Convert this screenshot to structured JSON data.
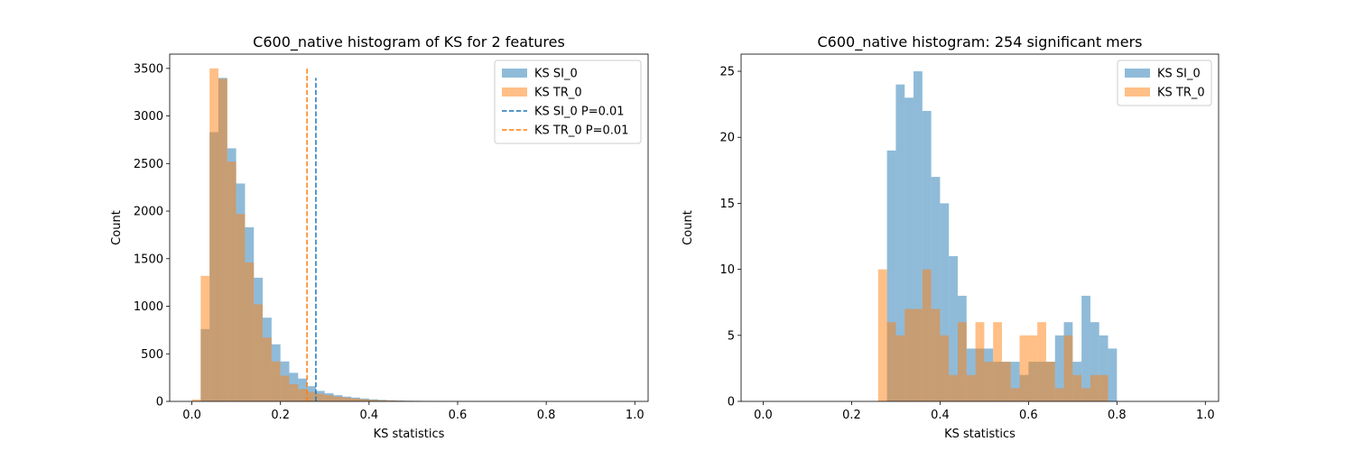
{
  "chart_data": [
    {
      "type": "histogram",
      "title": "C600_native histogram of KS for 2 features",
      "xlabel": "KS statistics",
      "ylabel": "Count",
      "xlim": [
        -0.05,
        1.03
      ],
      "ylim": [
        0,
        3650
      ],
      "xticks": [
        0.0,
        0.2,
        0.4,
        0.6,
        0.8,
        1.0
      ],
      "xtick_labels": [
        "0.0",
        "0.2",
        "0.4",
        "0.6",
        "0.8",
        "1.0"
      ],
      "yticks": [
        0,
        500,
        1000,
        1500,
        2000,
        2500,
        3000,
        3500
      ],
      "ytick_labels": [
        "0",
        "500",
        "1000",
        "1500",
        "2000",
        "2500",
        "3000",
        "3500"
      ],
      "grid": false,
      "legend_position": "top-right",
      "bins": [
        0.0,
        0.02,
        0.04,
        0.06,
        0.08,
        0.1,
        0.12,
        0.14,
        0.16,
        0.18,
        0.2,
        0.22,
        0.24,
        0.26,
        0.28,
        0.3,
        0.32,
        0.34,
        0.36,
        0.38,
        0.4,
        0.42,
        0.44,
        0.46,
        0.48,
        0.5,
        0.52,
        0.54,
        0.56,
        0.58,
        0.6,
        0.62,
        0.64,
        0.66,
        0.68,
        0.7,
        0.72,
        0.74,
        0.76,
        0.78,
        0.8
      ],
      "series": [
        {
          "name": "KS SI_0",
          "color": "#1f77b4",
          "alpha": 0.5,
          "values": [
            0,
            760,
            2830,
            3400,
            2660,
            2290,
            1830,
            1300,
            880,
            600,
            420,
            300,
            240,
            160,
            110,
            85,
            65,
            50,
            40,
            30,
            22,
            16,
            12,
            9,
            7,
            6,
            5,
            4,
            3,
            2,
            2,
            1,
            1,
            1,
            1,
            1,
            1,
            1,
            1,
            0
          ]
        },
        {
          "name": "KS TR_0",
          "color": "#ff7f0e",
          "alpha": 0.5,
          "values": [
            20,
            1320,
            3500,
            3390,
            2520,
            1970,
            1460,
            1020,
            670,
            420,
            270,
            180,
            130,
            100,
            80,
            65,
            50,
            40,
            30,
            22,
            16,
            12,
            9,
            7,
            5,
            4,
            3,
            2,
            2,
            1,
            1,
            1,
            1,
            1,
            1,
            1,
            0,
            0,
            0,
            0
          ]
        }
      ],
      "vlines": [
        {
          "name": "KS SI_0 P=0.01",
          "x": 0.28,
          "ymax": 3400,
          "color": "#1f77b4",
          "style": "dashed"
        },
        {
          "name": "KS TR_0 P=0.01",
          "x": 0.26,
          "ymax": 3500,
          "color": "#ff7f0e",
          "style": "dashed"
        }
      ]
    },
    {
      "type": "histogram",
      "title": "C600_native histogram: 254 significant mers",
      "xlabel": "KS statistics",
      "ylabel": "Count",
      "xlim": [
        -0.05,
        1.03
      ],
      "ylim": [
        0,
        26.3
      ],
      "xticks": [
        0.0,
        0.2,
        0.4,
        0.6,
        0.8,
        1.0
      ],
      "xtick_labels": [
        "0.0",
        "0.2",
        "0.4",
        "0.6",
        "0.8",
        "1.0"
      ],
      "yticks": [
        0,
        5,
        10,
        15,
        20,
        25
      ],
      "ytick_labels": [
        "0",
        "5",
        "10",
        "15",
        "20",
        "25"
      ],
      "grid": false,
      "legend_position": "top-right",
      "bins": [
        0.26,
        0.28,
        0.3,
        0.32,
        0.34,
        0.36,
        0.38,
        0.4,
        0.42,
        0.44,
        0.46,
        0.48,
        0.5,
        0.52,
        0.54,
        0.56,
        0.58,
        0.6,
        0.62,
        0.64,
        0.66,
        0.68,
        0.7,
        0.72,
        0.74,
        0.76,
        0.78,
        0.8
      ],
      "series": [
        {
          "name": "KS SI_0",
          "color": "#1f77b4",
          "alpha": 0.5,
          "values": [
            0,
            19,
            24,
            23,
            25,
            22,
            17,
            15,
            11,
            8,
            4,
            4,
            4,
            3,
            3,
            3,
            2,
            3,
            3,
            3,
            5,
            6,
            3,
            8,
            6,
            5,
            4
          ]
        },
        {
          "name": "KS TR_0",
          "color": "#ff7f0e",
          "alpha": 0.5,
          "values": [
            10,
            6,
            5,
            7,
            7,
            10,
            7,
            5,
            2,
            6,
            2,
            6,
            3,
            6,
            3,
            1,
            5,
            5,
            6,
            3,
            1,
            5,
            2,
            1,
            2,
            2,
            0
          ]
        }
      ]
    }
  ]
}
